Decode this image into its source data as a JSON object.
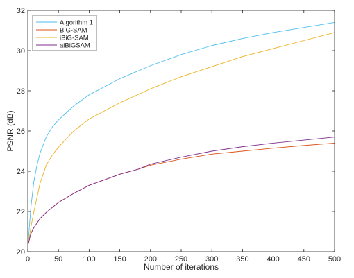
{
  "chart_data": {
    "type": "line",
    "title": "",
    "xlabel": "Number of iterations",
    "ylabel": "PSNR (dB)",
    "xlim": [
      0,
      500
    ],
    "ylim": [
      20,
      32
    ],
    "xticks": [
      0,
      50,
      100,
      150,
      200,
      250,
      300,
      350,
      400,
      450,
      500
    ],
    "yticks": [
      20,
      22,
      24,
      26,
      28,
      30,
      32
    ],
    "grid": false,
    "legend_position": "top-left",
    "series": [
      {
        "name": "Algorithm 1",
        "color": "#4dbeee",
        "x": [
          1,
          5,
          10,
          15,
          20,
          30,
          40,
          50,
          75,
          100,
          150,
          200,
          250,
          300,
          350,
          400,
          450,
          500
        ],
        "y": [
          20.6,
          22.2,
          23.5,
          24.3,
          24.9,
          25.7,
          26.2,
          26.55,
          27.25,
          27.8,
          28.6,
          29.25,
          29.8,
          30.25,
          30.6,
          30.9,
          31.15,
          31.4
        ]
      },
      {
        "name": "BiG-SAM",
        "color": "#d95319",
        "x": [
          1,
          5,
          10,
          20,
          30,
          40,
          50,
          75,
          100,
          150,
          180,
          200,
          250,
          300,
          350,
          400,
          450,
          500
        ],
        "y": [
          20.4,
          20.9,
          21.2,
          21.65,
          21.95,
          22.2,
          22.45,
          22.9,
          23.3,
          23.85,
          24.1,
          24.3,
          24.6,
          24.85,
          25.0,
          25.15,
          25.28,
          25.4
        ]
      },
      {
        "name": "iBiG-SAM",
        "color": "#edb120",
        "x": [
          1,
          5,
          10,
          20,
          30,
          40,
          50,
          75,
          100,
          150,
          200,
          250,
          300,
          350,
          400,
          450,
          500
        ],
        "y": [
          20.4,
          21.2,
          22.0,
          23.4,
          24.3,
          24.8,
          25.2,
          26.0,
          26.6,
          27.4,
          28.1,
          28.7,
          29.2,
          29.7,
          30.1,
          30.5,
          30.9
        ]
      },
      {
        "name": "aiBiGSAM",
        "color": "#7e2f8e",
        "x": [
          1,
          5,
          10,
          20,
          30,
          40,
          50,
          75,
          100,
          150,
          180,
          200,
          250,
          300,
          350,
          400,
          450,
          500
        ],
        "y": [
          20.4,
          20.9,
          21.2,
          21.65,
          21.95,
          22.2,
          22.45,
          22.9,
          23.3,
          23.85,
          24.1,
          24.35,
          24.7,
          25.0,
          25.22,
          25.4,
          25.55,
          25.7
        ]
      }
    ]
  }
}
